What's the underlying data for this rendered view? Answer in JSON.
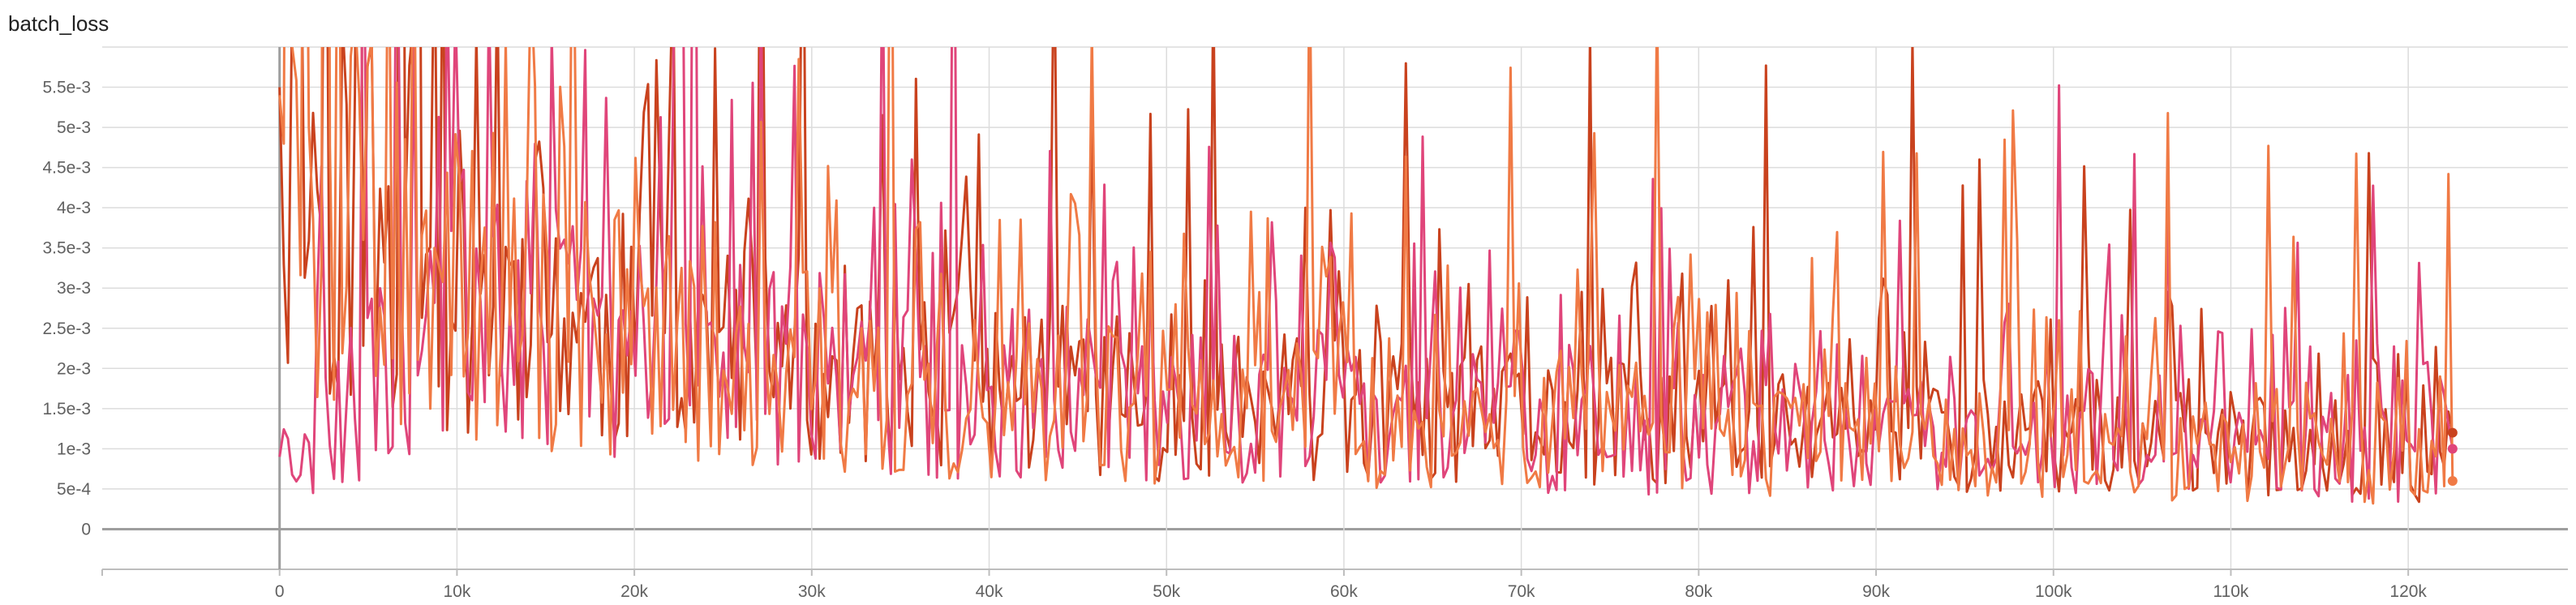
{
  "chart_data": {
    "type": "line",
    "title": "batch_loss",
    "xlabel": "",
    "ylabel": "",
    "xlim": [
      -10000,
      129000
    ],
    "ylim": [
      -0.0005,
      0.006
    ],
    "x_ticks": [
      0,
      10000,
      20000,
      30000,
      40000,
      50000,
      60000,
      70000,
      80000,
      90000,
      100000,
      110000,
      120000
    ],
    "x_tick_labels": [
      "0",
      "10k",
      "20k",
      "30k",
      "40k",
      "50k",
      "60k",
      "70k",
      "80k",
      "90k",
      "100k",
      "110k",
      "120k"
    ],
    "y_ticks": [
      0,
      0.0005,
      0.001,
      0.0015,
      0.002,
      0.0025,
      0.003,
      0.0035,
      0.004,
      0.0045,
      0.005,
      0.0055
    ],
    "y_tick_labels": [
      "0",
      "5e-4",
      "1e-3",
      "1.5e-3",
      "2e-3",
      "2.5e-3",
      "3e-3",
      "3.5e-3",
      "4e-3",
      "4.5e-3",
      "5e-3",
      "5.5e-3"
    ],
    "grid": true,
    "legend": "none",
    "series": [
      {
        "color": "#c9421e",
        "x_start": 0,
        "x_end": 122500,
        "points": 520,
        "seed": 11,
        "values": [
          0.0055,
          0.0036,
          0.0028,
          0.0024,
          0.0021,
          0.0019,
          0.0017,
          0.0016,
          0.0015,
          0.0014,
          0.0013,
          0.0012,
          0.0011
        ],
        "end_value": 0.0012
      },
      {
        "color": "#e0457a",
        "x_start": 0,
        "x_end": 122500,
        "points": 520,
        "seed": 29,
        "values": [
          0.0009,
          0.0033,
          0.0027,
          0.0023,
          0.002,
          0.0018,
          0.0016,
          0.0015,
          0.0014,
          0.0013,
          0.0012,
          0.0011,
          0.001
        ],
        "end_value": 0.001
      },
      {
        "color": "#f07a45",
        "x_start": 0,
        "x_end": 122500,
        "points": 520,
        "seed": 47,
        "values": [
          0.0054,
          0.0035,
          0.0027,
          0.0023,
          0.002,
          0.0018,
          0.0016,
          0.0015,
          0.0014,
          0.0013,
          0.0012,
          0.0011,
          0.001
        ],
        "end_value": 0.0006
      }
    ]
  }
}
